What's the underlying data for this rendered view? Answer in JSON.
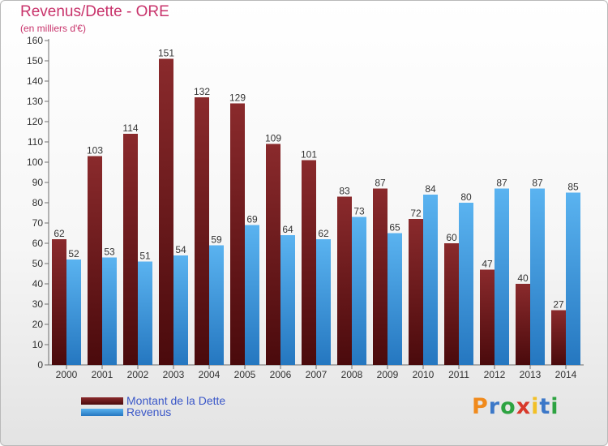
{
  "title": "Revenus/Dette - ORE",
  "subtitle": "(en milliers d'€)",
  "brand": {
    "letters": [
      "P",
      "r",
      "o",
      "x",
      "i",
      "t",
      "i"
    ],
    "colors": [
      "#f08a1c",
      "#3c78c8",
      "#2da341",
      "#d8392b",
      "#f2c027",
      "#3c78c8",
      "#2da341"
    ]
  },
  "colors": {
    "dette": "#7a1f22",
    "dette_dark": "#4a0a0c",
    "revenus": "#4aa6ea",
    "revenus_dark": "#2577c0",
    "title": "#c8336b"
  },
  "chart_data": {
    "type": "bar",
    "title": "Revenus/Dette - ORE",
    "subtitle": "(en milliers d'€)",
    "categories": [
      "2000",
      "2001",
      "2002",
      "2003",
      "2004",
      "2005",
      "2006",
      "2007",
      "2008",
      "2009",
      "2010",
      "2011",
      "2012",
      "2013",
      "2014"
    ],
    "series": [
      {
        "name": "Montant de la Dette",
        "values": [
          62,
          103,
          114,
          151,
          132,
          129,
          109,
          101,
          83,
          87,
          72,
          60,
          47,
          40,
          27
        ]
      },
      {
        "name": "Revenus",
        "values": [
          52,
          53,
          51,
          54,
          59,
          69,
          64,
          62,
          73,
          65,
          84,
          80,
          87,
          87,
          85
        ]
      }
    ],
    "yticks": [
      0,
      10,
      20,
      30,
      40,
      50,
      60,
      70,
      80,
      90,
      100,
      110,
      120,
      130,
      140,
      150,
      160
    ],
    "ylim": [
      0,
      160
    ],
    "grid": false,
    "legend": "bottom-left"
  }
}
